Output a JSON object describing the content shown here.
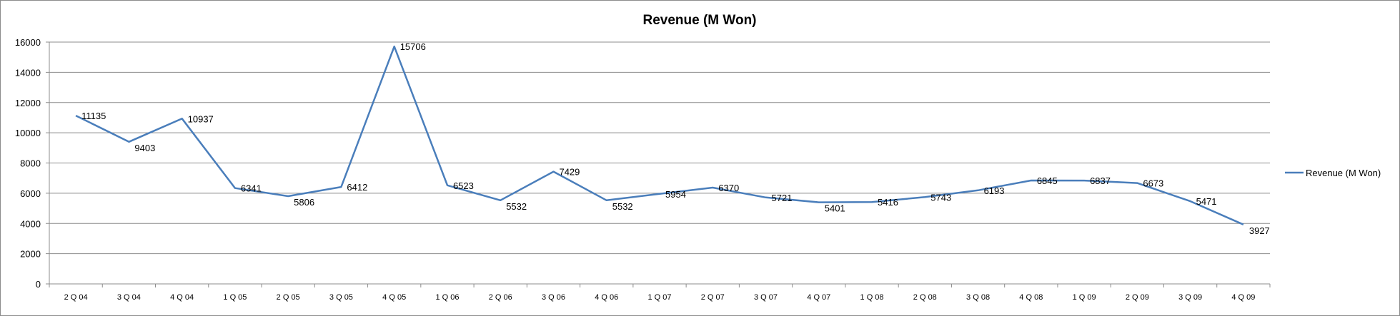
{
  "chart_data": {
    "type": "line",
    "title": "Revenue (M Won)",
    "xlabel": "",
    "ylabel": "",
    "categories": [
      "2 Q 04",
      "3 Q 04",
      "4 Q 04",
      "1 Q 05",
      "2 Q 05",
      "3 Q 05",
      "4 Q 05",
      "1 Q 06",
      "2 Q 06",
      "3 Q 06",
      "4 Q 06",
      "1 Q 07",
      "2 Q 07",
      "3 Q 07",
      "4 Q 07",
      "1 Q 08",
      "2 Q 08",
      "3 Q 08",
      "4 Q 08",
      "1 Q 09",
      "2 Q 09",
      "3 Q 09",
      "4 Q 09"
    ],
    "series": [
      {
        "name": "Revenue (M Won)",
        "values": [
          11135,
          9403,
          10937,
          6341,
          5806,
          6412,
          15706,
          6523,
          5532,
          7429,
          5532,
          5954,
          6370,
          5721,
          5401,
          5416,
          5743,
          6193,
          6845,
          6837,
          6673,
          5471,
          3927
        ],
        "color": "#4a7ebb"
      }
    ],
    "ylim": [
      0,
      16000
    ],
    "yticks": [
      0,
      2000,
      4000,
      6000,
      8000,
      10000,
      12000,
      14000,
      16000
    ],
    "grid": "horizontal",
    "gridline_color": "#8c8c8c",
    "legend_position": "right",
    "data_labels": true
  }
}
